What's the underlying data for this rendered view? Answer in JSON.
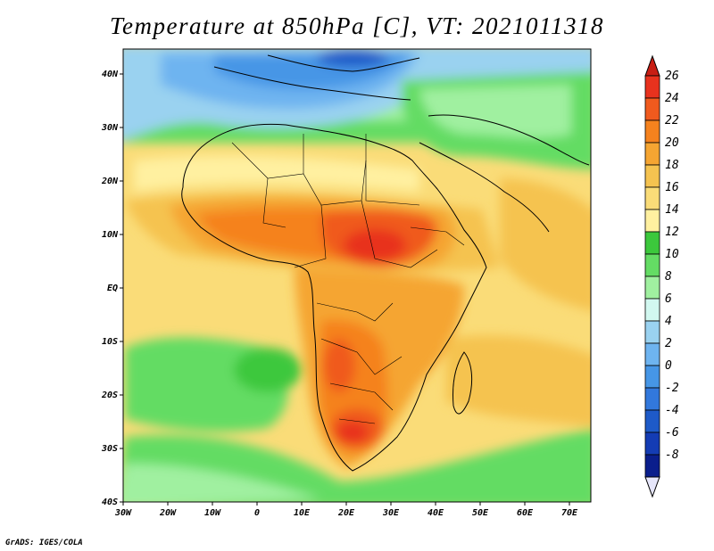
{
  "title": "Temperature at 850hPa [C], VT: 2021011318",
  "credit": "GrADS: IGES/COLA",
  "axes": {
    "lon_labels": [
      "30W",
      "20W",
      "10W",
      "0",
      "10E",
      "20E",
      "30E",
      "40E",
      "50E",
      "60E",
      "70E"
    ],
    "lat_labels": [
      "40N",
      "30N",
      "20N",
      "10N",
      "EQ",
      "10S",
      "20S",
      "30S",
      "40S"
    ]
  },
  "colorbar": {
    "labels": [
      "26",
      "24",
      "22",
      "20",
      "18",
      "16",
      "14",
      "12",
      "10",
      "8",
      "6",
      "4",
      "2",
      "0",
      "-2",
      "-4",
      "-6",
      "-8"
    ],
    "colors": [
      "#e8321e",
      "#f05a1e",
      "#f5821e",
      "#f5a532",
      "#f5c350",
      "#fadc78",
      "#fff0a0",
      "#3cc83c",
      "#64dc64",
      "#a0f0a0",
      "#d2f8f0",
      "#9ad2f0",
      "#6eb4f0",
      "#4696e6",
      "#3278dc",
      "#1e5ac8",
      "#143cb4",
      "#0a1e8c"
    ],
    "top_color": "#c81e14",
    "bottom_color": "#e6e6fa"
  },
  "map": {
    "region": "Africa",
    "variable": "Temperature at 850hPa",
    "unit": "C",
    "valid_time": "2021011318"
  }
}
